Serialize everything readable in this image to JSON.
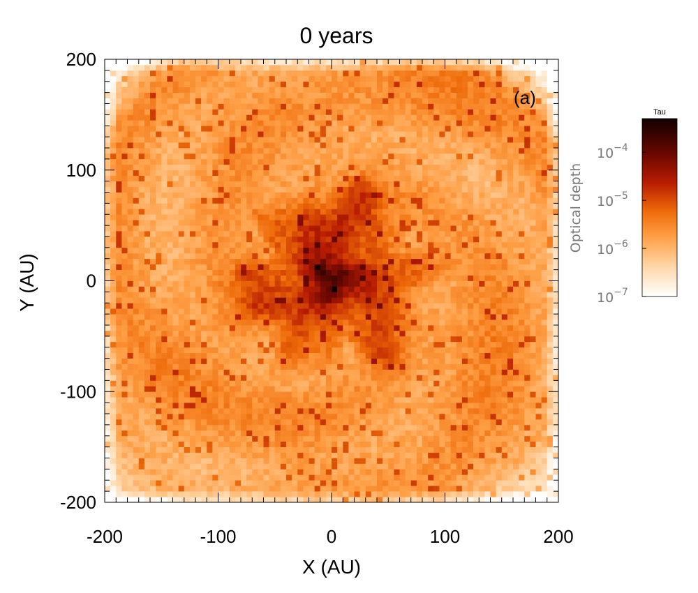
{
  "chart_data": {
    "type": "heatmap",
    "title": "0 years",
    "xlabel": "X (AU)",
    "ylabel": "Y (AU)",
    "xlim": [
      -200,
      200
    ],
    "ylim": [
      -200,
      200
    ],
    "x_ticks": [
      "-200",
      "-100",
      "0",
      "100",
      "200"
    ],
    "y_ticks": [
      "-200",
      "-100",
      "0",
      "100",
      "200"
    ],
    "panel_label": "(a)",
    "grid": false,
    "grid_size": 80,
    "colormap": [
      "#ffffff",
      "#ffd9ad",
      "#ff9e44",
      "#ee6a08",
      "#b81c02",
      "#6a0800",
      "#120000"
    ],
    "colorbar": {
      "title": "Tau",
      "label": "Optical depth",
      "scale": "log",
      "range": [
        1e-07,
        0.0005
      ],
      "ticks": [
        {
          "value": 1e-07,
          "base": "10",
          "exp": "−7"
        },
        {
          "value": 1e-06,
          "base": "10",
          "exp": "−6"
        },
        {
          "value": 1e-05,
          "base": "10",
          "exp": "−5"
        },
        {
          "value": 0.0001,
          "base": "10",
          "exp": "−4"
        }
      ]
    },
    "field_features": {
      "central_peak": {
        "x": 0,
        "y": 0,
        "optical_depth": 0.0003
      },
      "inner_disk_radius": 75,
      "inner_disk_level": 1e-05,
      "outer_level": 2e-06,
      "corner_level": 1e-07
    }
  }
}
